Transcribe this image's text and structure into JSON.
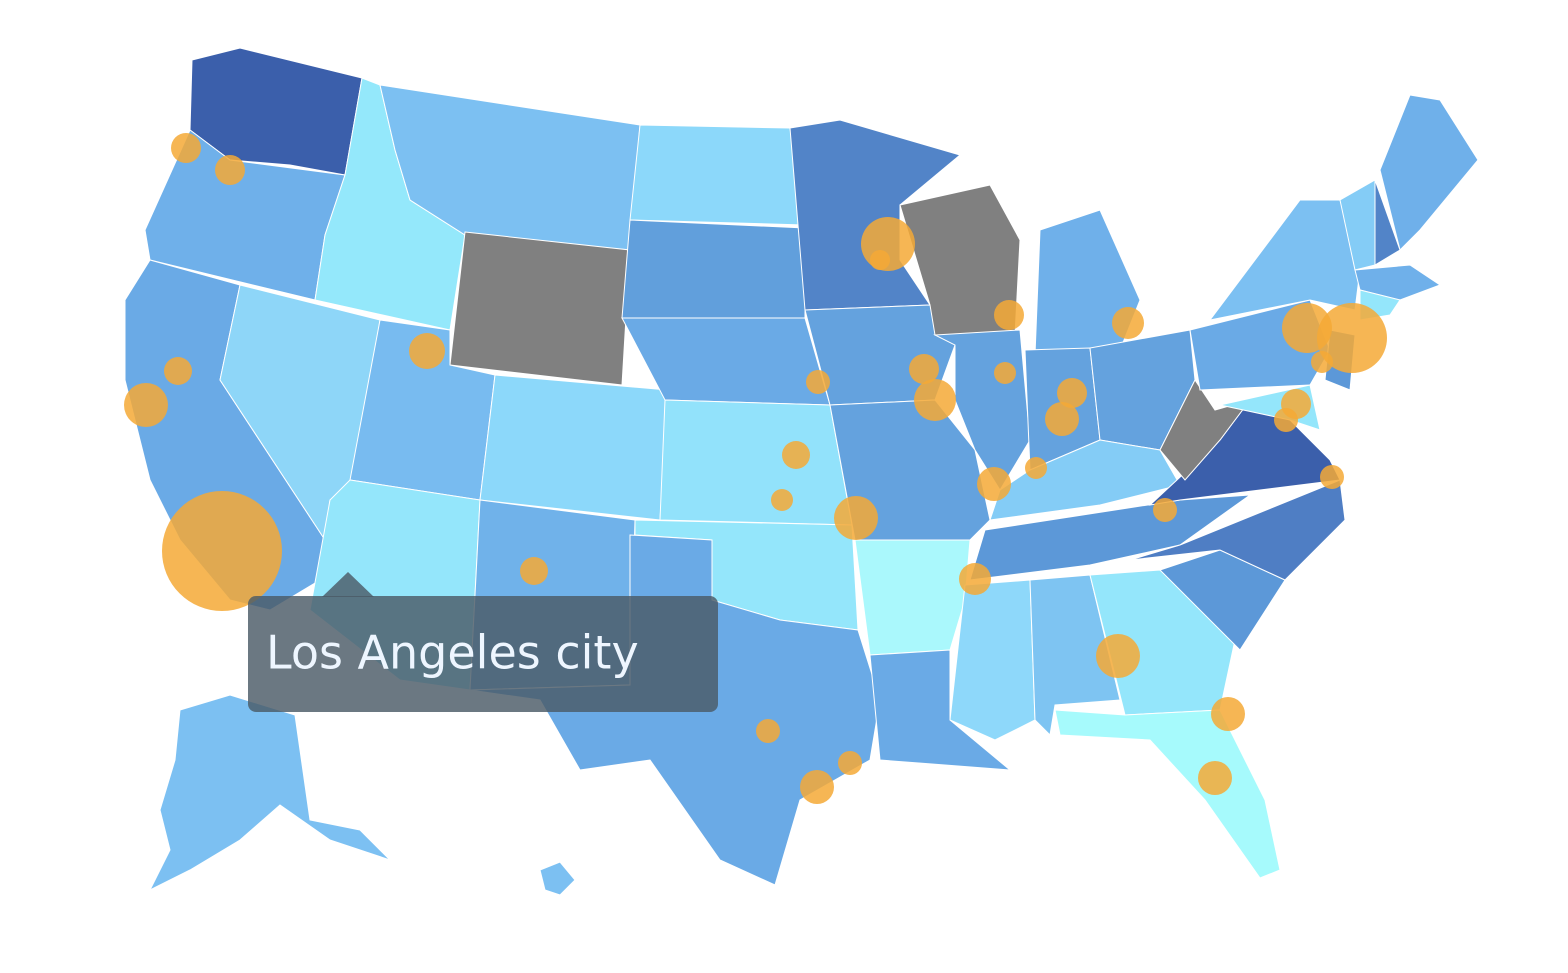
{
  "tooltip": {
    "text": "Los Angeles city"
  }
}
